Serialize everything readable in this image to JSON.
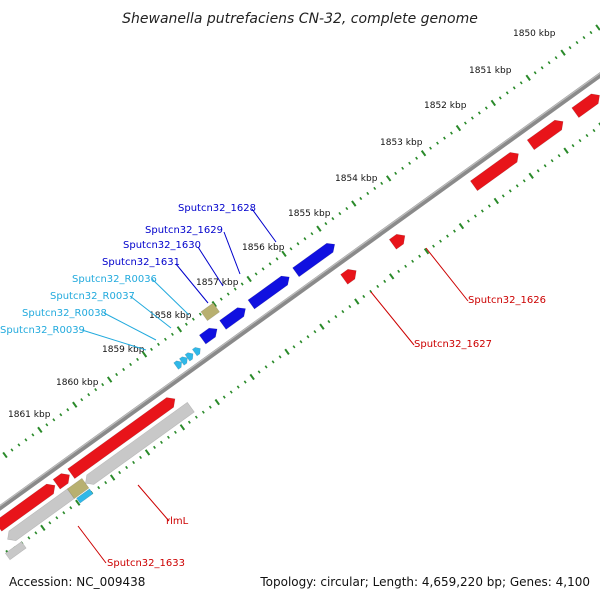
{
  "title": "Shewanella putrefaciens CN-32, complete genome",
  "accession_text": "Accession: NC_009438",
  "summary_text": "Topology: circular; Length: 4,659,220 bp; Genes: 4,100",
  "colors": {
    "backbone": "#8a8a8a",
    "forward_gene": "#e8141a",
    "reverse_gene": "#c8c8c8",
    "blue_gene": "#1010e0",
    "rna_marker": "#30b8e8",
    "misc_feature": "#b8b070",
    "tick": "#2a8a2a",
    "label_red": "#cc0000",
    "label_blue": "#0000cc",
    "label_cyan": "#22aadd"
  },
  "ruler_ticks": [
    {
      "label": "1850 kbp"
    },
    {
      "label": "1851 kbp"
    },
    {
      "label": "1852 kbp"
    },
    {
      "label": "1853 kbp"
    },
    {
      "label": "1854 kbp"
    },
    {
      "label": "1855 kbp"
    },
    {
      "label": "1856 kbp"
    },
    {
      "label": "1857 kbp"
    },
    {
      "label": "1858 kbp"
    },
    {
      "label": "1859 kbp"
    },
    {
      "label": "1860 kbp"
    },
    {
      "label": "1861 kbp"
    }
  ],
  "gene_labels": [
    {
      "text": "Sputcn32_1628",
      "color": "label_blue"
    },
    {
      "text": "Sputcn32_1629",
      "color": "label_blue"
    },
    {
      "text": "Sputcn32_1630",
      "color": "label_blue"
    },
    {
      "text": "Sputcn32_1631",
      "color": "label_blue"
    },
    {
      "text": "Sputcn32_R0036",
      "color": "label_cyan"
    },
    {
      "text": "Sputcn32_R0037",
      "color": "label_cyan"
    },
    {
      "text": "Sputcn32_R0038",
      "color": "label_cyan"
    },
    {
      "text": "Sputcn32_R0039",
      "color": "label_cyan"
    },
    {
      "text": "Sputcn32_1626",
      "color": "label_red"
    },
    {
      "text": "Sputcn32_1627",
      "color": "label_red"
    },
    {
      "text": "rlmL",
      "color": "label_red"
    },
    {
      "text": "Sputcn32_1633",
      "color": "label_red"
    }
  ]
}
